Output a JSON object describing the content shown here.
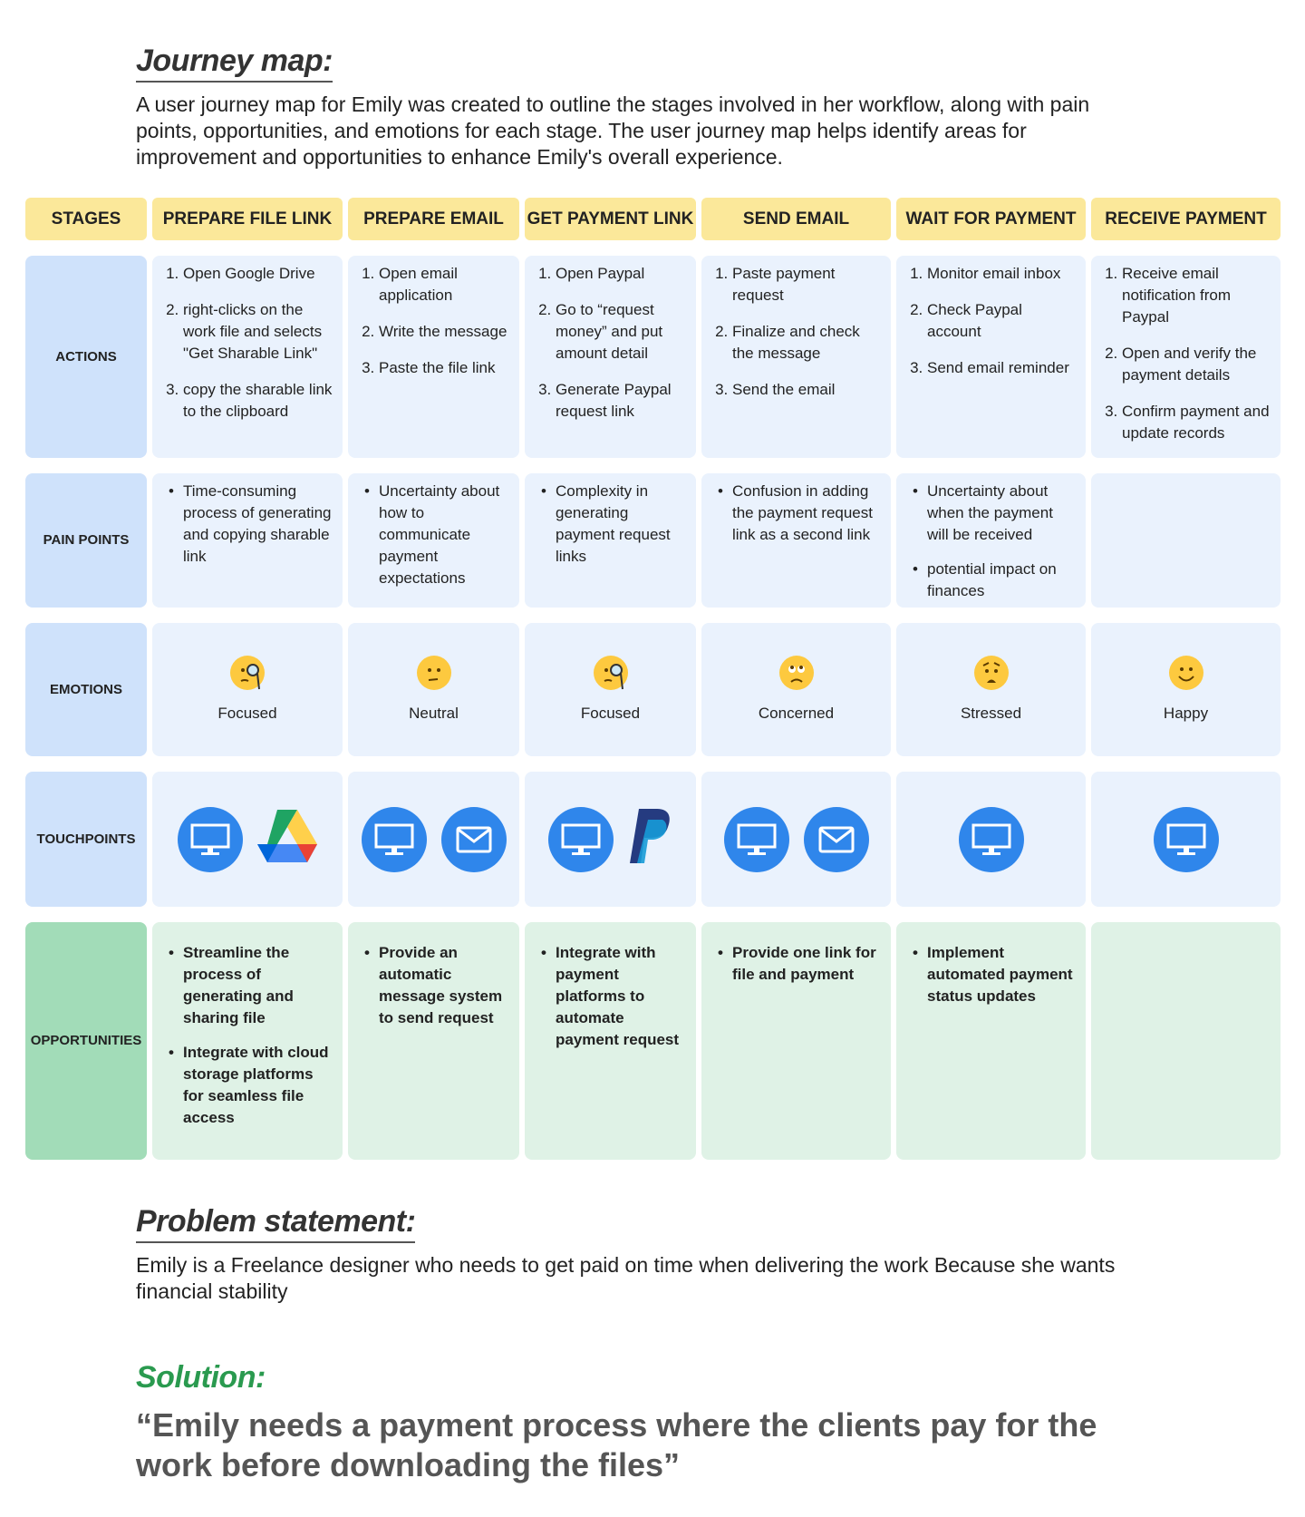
{
  "journey": {
    "title": "Journey map:",
    "intro": "A user journey map for Emily was created to outline the stages involved in her workflow, along with pain points, opportunities, and emotions for each stage. The user journey map helps identify areas for improvement and opportunities to enhance Emily's overall experience."
  },
  "table": {
    "row_labels": {
      "stages": "STAGES",
      "actions": "ACTIONS",
      "pain": "PAIN POINTS",
      "emotions": "EMOTIONS",
      "touchpoints": "TOUCHPOINTS",
      "opportunities": "OPPORTUNITIES"
    },
    "stages": [
      {
        "name": "PREPARE FILE LINK",
        "actions": [
          "Open Google Drive",
          "right-clicks on the work file and selects \"Get Sharable Link\"",
          "copy the sharable link to the clipboard"
        ],
        "pain": [
          "Time-consuming process of generating and copying sharable link"
        ],
        "emotion": "Focused",
        "emotion_icon": "face-with-monocle-icon",
        "touchpoints": [
          "computer-icon",
          "google-drive-icon"
        ],
        "opportunities": [
          "Streamline the process of generating and sharing file",
          "Integrate with cloud storage platforms for seamless file access"
        ]
      },
      {
        "name": "PREPARE EMAIL",
        "actions": [
          "Open email application",
          "Write the message",
          "Paste the file link"
        ],
        "pain": [
          "Uncertainty about how to communicate payment expectations"
        ],
        "emotion": "Neutral",
        "emotion_icon": "neutral-face-icon",
        "touchpoints": [
          "computer-icon",
          "email-icon"
        ],
        "opportunities": [
          "Provide an automatic message system to send request"
        ]
      },
      {
        "name": "GET PAYMENT LINK",
        "actions": [
          "Open Paypal",
          "Go to “request money” and put amount detail",
          "Generate Paypal request link"
        ],
        "pain": [
          "Complexity in generating payment request links"
        ],
        "emotion": "Focused",
        "emotion_icon": "face-with-monocle-icon",
        "touchpoints": [
          "computer-icon",
          "paypal-icon"
        ],
        "opportunities": [
          "Integrate with payment platforms to automate payment request"
        ]
      },
      {
        "name": "SEND EMAIL",
        "actions": [
          "Paste payment request",
          "Finalize and check the message",
          "Send the email"
        ],
        "pain": [
          "Confusion in adding the payment request link as a second link"
        ],
        "emotion": "Concerned",
        "emotion_icon": "concerned-face-icon",
        "touchpoints": [
          "computer-icon",
          "email-icon"
        ],
        "opportunities": [
          "Provide one link for file and payment"
        ]
      },
      {
        "name": "WAIT FOR PAYMENT",
        "actions": [
          "Monitor email inbox",
          "Check Paypal account",
          "Send email reminder"
        ],
        "pain": [
          "Uncertainty about when the payment will be received",
          "potential impact  on finances"
        ],
        "emotion": "Stressed",
        "emotion_icon": "worried-face-icon",
        "touchpoints": [
          "computer-icon"
        ],
        "opportunities": [
          "Implement automated payment status updates"
        ]
      },
      {
        "name": "RECEIVE PAYMENT",
        "actions": [
          "Receive email notification from Paypal",
          "Open and verify the payment details",
          "Confirm payment and update records"
        ],
        "pain": [],
        "emotion": "Happy",
        "emotion_icon": "smiling-face-icon",
        "touchpoints": [
          "computer-icon"
        ],
        "opportunities": []
      }
    ]
  },
  "problem": {
    "title": "Problem statement:",
    "text": "Emily is a Freelance designer who needs to get paid on time when delivering the work Because she wants financial stability"
  },
  "solution": {
    "title": "Solution:",
    "quote": "“Emily needs a payment process where the clients pay for the work before downloading the files”"
  },
  "colors": {
    "stage_header": "#fbe89a",
    "row_label": "#cfe2fb",
    "cell": "#eaf2fd",
    "opp_label": "#a2dcb8",
    "opp_cell": "#dff2e6",
    "icon_blue": "#2f86eb",
    "solution_green": "#2a9a4f"
  }
}
